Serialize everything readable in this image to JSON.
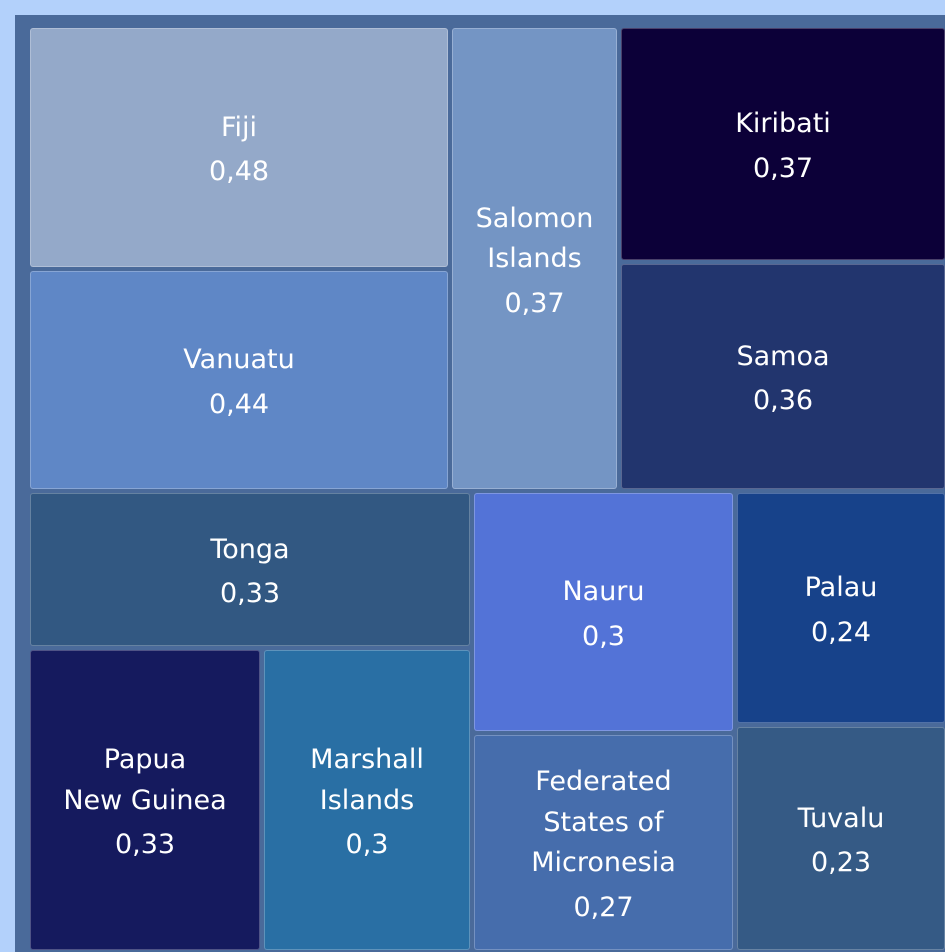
{
  "chart_data": {
    "type": "treemap",
    "categories": [
      "Fiji",
      "Vanuatu",
      "Salomon\nIslands",
      "Kiribati",
      "Samoa",
      "Tonga",
      "Papua\nNew Guinea",
      "Marshall\nIslands",
      "Nauru",
      "Federated\nStates of\nMicronesia",
      "Palau",
      "Tuvalu"
    ],
    "values": [
      0.48,
      0.44,
      0.37,
      0.37,
      0.36,
      0.33,
      0.33,
      0.3,
      0.3,
      0.27,
      0.24,
      0.23
    ],
    "value_labels": [
      "0,48",
      "0,44",
      "0,37",
      "0,37",
      "0,36",
      "0,33",
      "0,33",
      "0,3",
      "0,3",
      "0,27",
      "0,24",
      "0,23"
    ],
    "colors": [
      "#94a9c9",
      "#5f87c6",
      "#7495c4",
      "#0c0038",
      "#22356e",
      "#325882",
      "#151a5e",
      "#296fa4",
      "#5373d7",
      "#466dac",
      "#17428a",
      "#355a85"
    ]
  }
}
